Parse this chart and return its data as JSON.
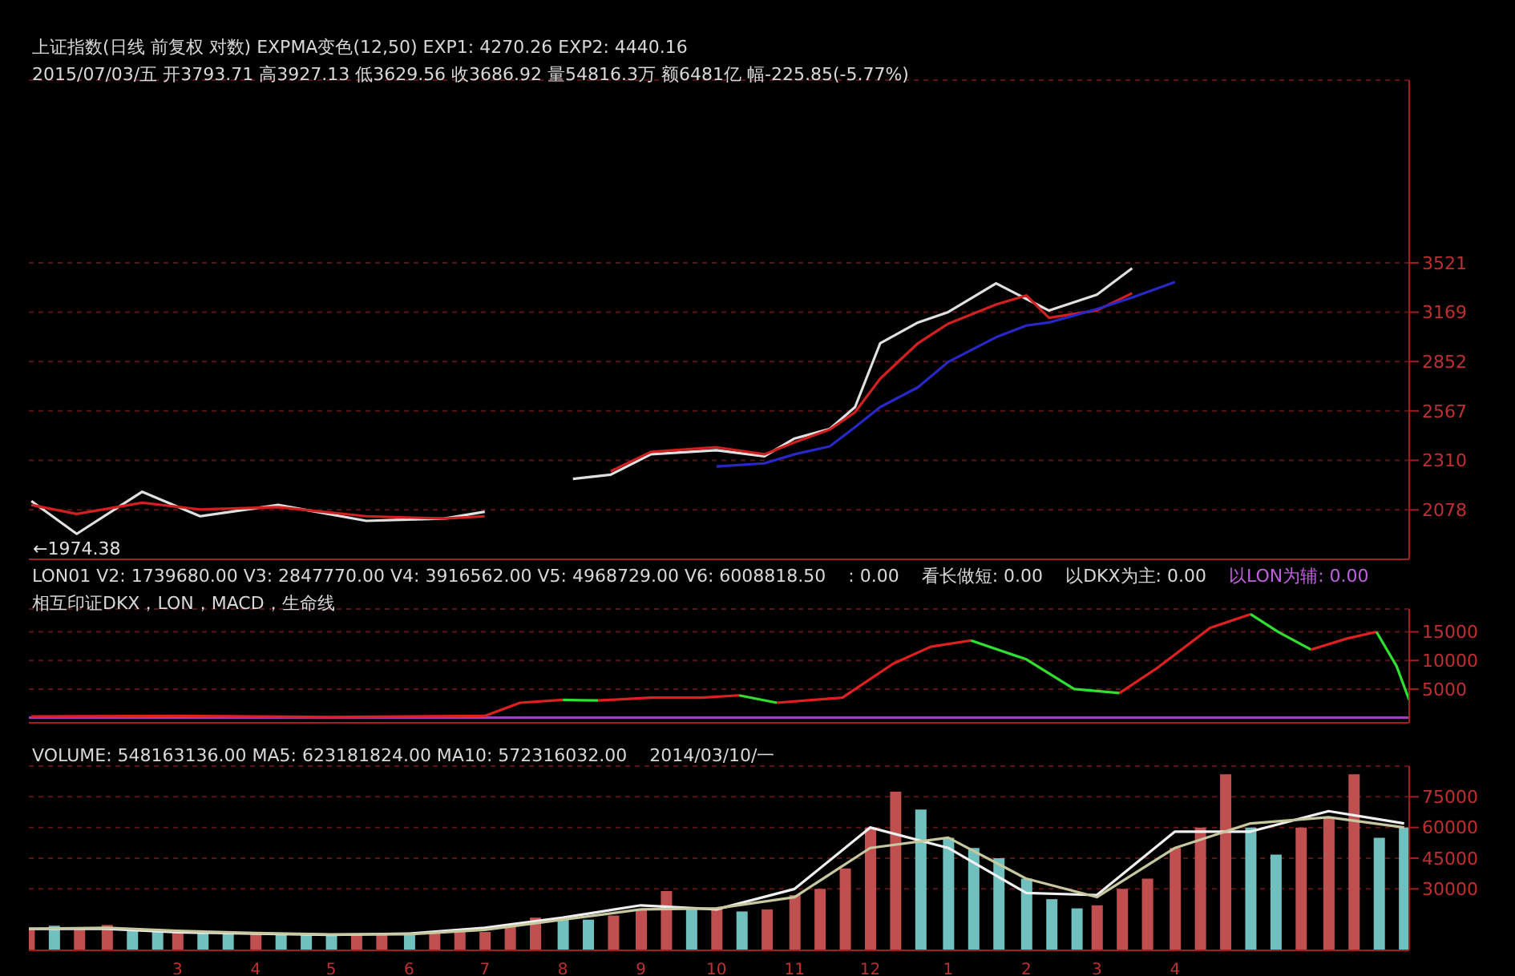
{
  "chart_data": [
    {
      "type": "line",
      "title": "上证指数(日线 前复权 对数) EXPMA变色(12,50) EXP1: 4270.26 EXP2: 4440.16",
      "subtitle": "2015/07/03/五 开3793.71 高3927.13 低3629.56 收3686.92 量54816.3万 额6481亿 幅-225.85(-5.77%)",
      "series": [
        {
          "color": "#e0e0e0",
          "x": [
            "2014-01-02",
            "2014-01-20",
            "2014-02-15",
            "2014-03-10",
            "2014-04-10",
            "2014-05-15",
            "2014-06-15",
            "2014-07-01"
          ],
          "values": [
            2118,
            1974.38,
            2160,
            2050,
            2100,
            2030,
            2040,
            2070
          ]
        },
        {
          "color": "#e0e0e0",
          "x": [
            "2014-08-05",
            "2014-08-20",
            "2014-09-05",
            "2014-10-01",
            "2014-10-20",
            "2014-11-01",
            "2014-11-15",
            "2014-11-25",
            "2014-12-05",
            "2014-12-20",
            "2015-01-01",
            "2015-01-20",
            "2015-02-01",
            "2015-02-10",
            "2015-03-01",
            "2015-03-15"
          ],
          "values": [
            2220,
            2240,
            2340,
            2360,
            2330,
            2420,
            2470,
            2588,
            2966,
            3100,
            3170,
            3370,
            3260,
            3180,
            3290,
            3480
          ]
        },
        {
          "color": "#d02020",
          "x": [
            "2014-01-02",
            "2014-01-20",
            "2014-02-15",
            "2014-03-10",
            "2014-04-10",
            "2014-05-15",
            "2014-06-15",
            "2014-07-01"
          ],
          "values": [
            2100,
            2060,
            2110,
            2080,
            2090,
            2050,
            2040,
            2050
          ]
        },
        {
          "color": "#d02020",
          "x": [
            "2014-08-20",
            "2014-09-05",
            "2014-10-01",
            "2014-10-20",
            "2014-11-01",
            "2014-11-15",
            "2014-11-25",
            "2014-12-05",
            "2014-12-20",
            "2015-01-01",
            "2015-01-20",
            "2015-02-01",
            "2015-02-10",
            "2015-03-01",
            "2015-03-15"
          ],
          "values": [
            2257,
            2352,
            2375,
            2340,
            2400,
            2467,
            2560,
            2750,
            2966,
            3092,
            3221,
            3284,
            3131,
            3181,
            3300
          ]
        },
        {
          "color": "#2828c8",
          "x": [
            "2014-10-01",
            "2014-10-20",
            "2014-11-01",
            "2014-11-15",
            "2014-11-25",
            "2014-12-05",
            "2014-12-20",
            "2015-01-01",
            "2015-01-20",
            "2015-02-01",
            "2015-02-10",
            "2015-03-01",
            "2015-03-15",
            "2015-04-01"
          ],
          "values": [
            2280,
            2295,
            2340,
            2380,
            2480,
            2588,
            2700,
            2850,
            3004,
            3080,
            3100,
            3190,
            3270,
            3380
          ]
        }
      ],
      "annotations": [
        {
          "text": "←1974.38",
          "x": "2014-01-20",
          "y": 1974.38
        }
      ],
      "log": "y",
      "xlim": [
        "2014-01-01",
        "2015-07-03"
      ],
      "ylim": [
        1870,
        5200
      ],
      "yticks": [
        2078,
        2310,
        2567,
        2852,
        3169,
        3521
      ],
      "grid": "y",
      "tick_labels": "y"
    },
    {
      "type": "line",
      "title": "LON01 V2: 1739680.00 V3: 2847770.00 V4: 3916562.00 V5: 4968729.00 V6: 6008818.50",
      "subtitle": "相互印证DKX，LON，MACD，生命线",
      "annotations": [
        ": 0.00",
        "看长做短: 0.00",
        "以DKX为主: 0.00",
        "以LON为辅: 0.00"
      ],
      "series": [
        {
          "color": "#e02020",
          "x": [
            "2014-01-02",
            "2014-03-01",
            "2014-05-01",
            "2014-07-01",
            "2014-07-15",
            "2014-08-01"
          ],
          "values": [
            200,
            300,
            100,
            300,
            2600,
            3100
          ]
        },
        {
          "color": "#30e030",
          "x": [
            "2014-08-01",
            "2014-08-08",
            "2014-08-15"
          ],
          "values": [
            3100,
            3050,
            3000
          ]
        },
        {
          "color": "#e02020",
          "x": [
            "2014-08-15",
            "2014-09-05",
            "2014-09-25",
            "2014-10-10"
          ],
          "values": [
            3000,
            3500,
            3500,
            3900
          ]
        },
        {
          "color": "#30e030",
          "x": [
            "2014-10-10",
            "2014-10-18",
            "2014-10-25"
          ],
          "values": [
            3900,
            3200,
            2600
          ]
        },
        {
          "color": "#e02020",
          "x": [
            "2014-10-25",
            "2014-11-20",
            "2014-12-10",
            "2014-12-25",
            "2015-01-10"
          ],
          "values": [
            2600,
            3500,
            9400,
            12400,
            13500
          ]
        },
        {
          "color": "#30e030",
          "x": [
            "2015-01-10",
            "2015-02-01",
            "2015-02-20",
            "2015-03-10"
          ],
          "values": [
            13500,
            10200,
            5000,
            4300
          ]
        },
        {
          "color": "#e02020",
          "x": [
            "2015-03-10",
            "2015-03-25",
            "2015-04-15",
            "2015-05-01"
          ],
          "values": [
            4300,
            8700,
            15700,
            18100
          ]
        },
        {
          "color": "#30e030",
          "x": [
            "2015-05-01",
            "2015-05-12",
            "2015-05-25"
          ],
          "values": [
            18100,
            15000,
            11900
          ]
        },
        {
          "color": "#e02020",
          "x": [
            "2015-05-25",
            "2015-06-08",
            "2015-06-20"
          ],
          "values": [
            11900,
            13800,
            15000
          ]
        },
        {
          "color": "#30e030",
          "x": [
            "2015-06-20",
            "2015-06-28",
            "2015-07-03"
          ],
          "values": [
            15000,
            9000,
            3100
          ]
        }
      ],
      "ref_lines": [
        {
          "axis": "y",
          "value": 0,
          "color": "#a040c0"
        }
      ],
      "xlim": [
        "2014-01-01",
        "2015-07-03"
      ],
      "ylim": [
        -900,
        19000
      ],
      "yticks": [
        5000,
        10000,
        15000
      ],
      "grid": "y",
      "tick_labels": "y"
    },
    {
      "type": "bar",
      "title": "VOLUME: 548163136.00 MA5: 623181824.00 MA10: 572316032.00",
      "annotations": [
        "2014/03/10/一"
      ],
      "x": [
        "2014-01-01",
        "2014-01-11",
        "2014-01-21",
        "2014-02-01",
        "2014-02-11",
        "2014-02-21",
        "2014-03-01",
        "2014-03-11",
        "2014-03-21",
        "2014-04-01",
        "2014-04-11",
        "2014-04-21",
        "2014-05-01",
        "2014-05-11",
        "2014-05-21",
        "2014-06-01",
        "2014-06-11",
        "2014-06-21",
        "2014-07-01",
        "2014-07-11",
        "2014-07-21",
        "2014-08-01",
        "2014-08-11",
        "2014-08-21",
        "2014-09-01",
        "2014-09-11",
        "2014-09-21",
        "2014-10-01",
        "2014-10-11",
        "2014-10-21",
        "2014-11-01",
        "2014-11-11",
        "2014-11-21",
        "2014-12-01",
        "2014-12-11",
        "2014-12-21",
        "2015-01-01",
        "2015-01-11",
        "2015-01-21",
        "2015-02-01",
        "2015-02-11",
        "2015-02-21",
        "2015-03-01",
        "2015-03-11",
        "2015-03-21",
        "2015-04-01",
        "2015-04-11",
        "2015-04-21",
        "2015-05-01",
        "2015-05-11",
        "2015-05-21",
        "2015-06-01",
        "2015-06-11",
        "2015-06-21",
        "2015-07-01"
      ],
      "series": [
        {
          "colors": [
            "#c05050",
            "#70c0c0",
            "#c05050",
            "#c05050",
            "#70c0c0",
            "#70c0c0",
            "#c05050",
            "#70c0c0",
            "#70c0c0",
            "#c05050",
            "#70c0c0",
            "#70c0c0",
            "#70c0c0",
            "#c05050",
            "#c05050",
            "#70c0c0",
            "#c05050",
            "#c05050",
            "#c05050",
            "#c05050",
            "#c05050",
            "#70c0c0",
            "#70c0c0",
            "#c05050",
            "#c05050",
            "#c05050",
            "#70c0c0",
            "#c05050",
            "#70c0c0",
            "#c05050",
            "#c05050",
            "#c05050",
            "#c05050",
            "#c05050",
            "#c05050",
            "#70c0c0",
            "#70c0c0",
            "#70c0c0",
            "#70c0c0",
            "#70c0c0",
            "#70c0c0",
            "#70c0c0",
            "#c05050",
            "#c05050",
            "#c05050",
            "#c05050",
            "#c05050",
            "#c05050",
            "#70c0c0",
            "#70c0c0",
            "#c05050",
            "#c05050",
            "#c05050",
            "#70c0c0",
            "#70c0c0"
          ],
          "values": [
            10000,
            12000,
            11000,
            12400,
            10000,
            9000,
            9500,
            8500,
            8000,
            9000,
            8000,
            7500,
            7300,
            7500,
            8000,
            7500,
            8500,
            9000,
            9000,
            12000,
            16000,
            16000,
            15000,
            17000,
            20000,
            29000,
            20500,
            21000,
            19000,
            20000,
            27000,
            30000,
            40000,
            60000,
            77500,
            68800,
            55000,
            50000,
            45000,
            35000,
            25000,
            20500,
            22000,
            30000,
            35000,
            50000,
            60000,
            86000,
            60000,
            46800,
            60000,
            65000,
            86000,
            55000,
            60000
          ]
        },
        {
          "type": "line",
          "color": "#f0f0f0",
          "x": [
            "2014-01-01",
            "2014-02-01",
            "2014-03-01",
            "2014-04-01",
            "2014-05-01",
            "2014-06-01",
            "2014-07-01",
            "2014-08-01",
            "2014-09-01",
            "2014-10-01",
            "2014-11-01",
            "2014-12-01",
            "2015-01-01",
            "2015-02-01",
            "2015-03-01",
            "2015-04-01",
            "2015-05-01",
            "2015-06-01",
            "2015-07-01"
          ],
          "values": [
            10500,
            10500,
            8800,
            8200,
            7600,
            8200,
            11000,
            16000,
            22000,
            20000,
            30000,
            60000,
            50000,
            28000,
            27000,
            58000,
            58000,
            68000,
            62000
          ]
        },
        {
          "type": "line",
          "color": "#c8c8a0",
          "x": [
            "2014-01-01",
            "2014-02-01",
            "2014-03-01",
            "2014-04-01",
            "2014-05-01",
            "2014-06-01",
            "2014-07-01",
            "2014-08-01",
            "2014-09-01",
            "2014-10-01",
            "2014-11-01",
            "2014-12-01",
            "2015-01-01",
            "2015-02-01",
            "2015-03-01",
            "2015-04-01",
            "2015-05-01",
            "2015-06-01",
            "2015-07-01"
          ],
          "values": [
            10500,
            11000,
            9500,
            8500,
            7800,
            7900,
            10000,
            15000,
            20000,
            20500,
            26000,
            50000,
            55000,
            35000,
            26000,
            50000,
            62000,
            65000,
            60000
          ]
        }
      ],
      "xlim": [
        "2014-01-01",
        "2015-07-03"
      ],
      "xticks": [
        {
          "value": "2014-03-01",
          "label": "3"
        },
        {
          "value": "2014-04-01",
          "label": "4"
        },
        {
          "value": "2014-05-01",
          "label": "5"
        },
        {
          "value": "2014-06-01",
          "label": "6"
        },
        {
          "value": "2014-07-01",
          "label": "7"
        },
        {
          "value": "2014-08-01",
          "label": "8"
        },
        {
          "value": "2014-09-01",
          "label": "9"
        },
        {
          "value": "2014-10-01",
          "label": "10"
        },
        {
          "value": "2014-11-01",
          "label": "11"
        },
        {
          "value": "2014-12-01",
          "label": "12"
        },
        {
          "value": "2015-01-01",
          "label": "1"
        },
        {
          "value": "2015-02-01",
          "label": "2"
        },
        {
          "value": "2015-03-01",
          "label": "3"
        },
        {
          "value": "2015-04-01",
          "label": "4"
        }
      ],
      "ylim": [
        0,
        90000
      ],
      "yticks": [
        30000,
        45000,
        60000,
        75000
      ],
      "grid": "y"
    }
  ]
}
